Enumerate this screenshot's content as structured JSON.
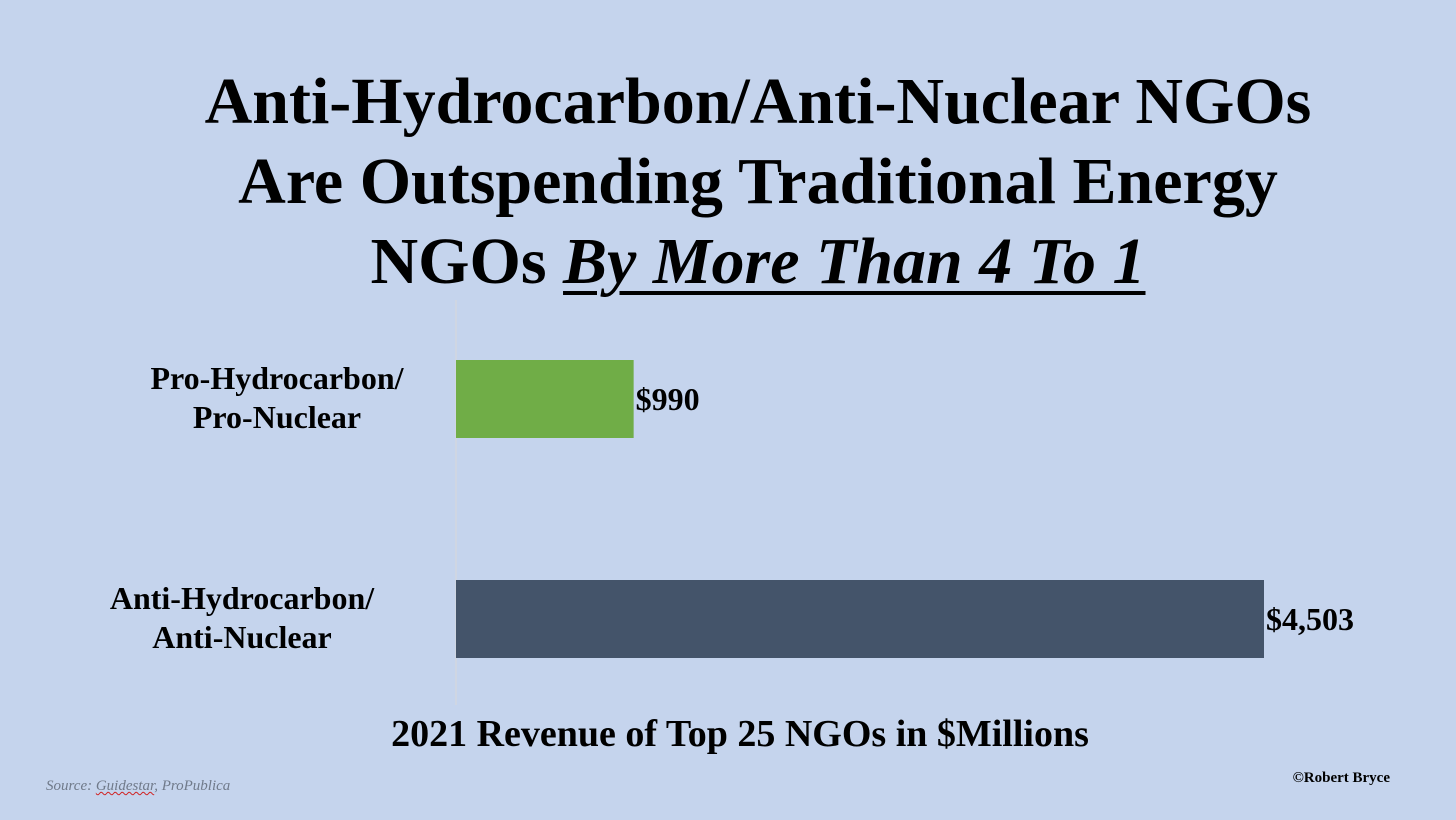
{
  "title": {
    "line1": "Anti-Hydrocarbon/Anti-Nuclear NGOs",
    "line2": "Are Outspending Traditional Energy",
    "line3_plain": "NGOs ",
    "line3_emphasis": "By More Than 4 To 1"
  },
  "source": {
    "prefix": "Source: ",
    "name1": "Guidestar",
    "rest": ", ProPublica"
  },
  "copyright": "©Robert Bryce",
  "colors": {
    "background": "#c5d4ed",
    "pro_bar": "#70ad47",
    "anti_bar": "#44546a",
    "axis_line": "#d9d9d9"
  },
  "chart_data": {
    "type": "bar",
    "orientation": "horizontal",
    "xlabel": "2021 Revenue of Top 25 NGOs in $Millions",
    "ylabel": "",
    "xlim": [
      0,
      4503
    ],
    "grid": false,
    "legend": "none",
    "categories": [
      [
        "Pro-Hydrocarbon/",
        "Pro-Nuclear"
      ],
      [
        "Anti-Hydrocarbon/",
        "Anti-Nuclear"
      ]
    ],
    "values": [
      990,
      4503
    ],
    "data_labels": [
      "$990",
      "$4,503"
    ],
    "bar_colors": [
      "#70ad47",
      "#44546a"
    ]
  }
}
